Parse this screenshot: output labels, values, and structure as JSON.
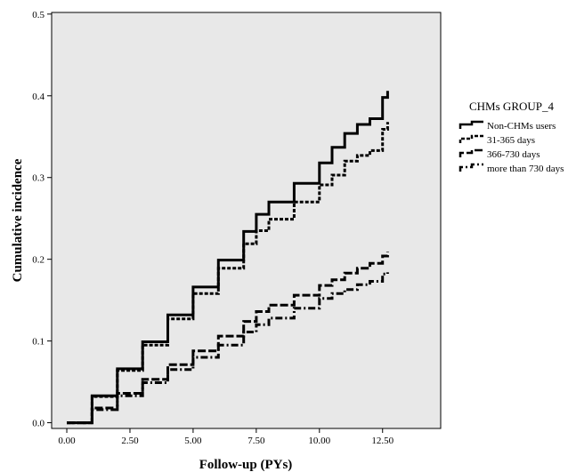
{
  "chart_data": {
    "type": "line",
    "title": "",
    "xlabel": "Follow-up (PYs)",
    "ylabel": "Cumulative incidence",
    "xlim": [
      -0.6,
      14.8
    ],
    "ylim": [
      -0.007,
      0.502
    ],
    "x_ticks": [
      0,
      2.5,
      5,
      7.5,
      10,
      12.5
    ],
    "x_tick_labels": [
      "0.00",
      "2.50",
      "5.00",
      "7.50",
      "10.00",
      "12.50"
    ],
    "y_ticks": [
      0,
      0.1,
      0.2,
      0.3,
      0.4,
      0.5
    ],
    "y_tick_labels": [
      "0.0",
      "0.1",
      "0.2",
      "0.3",
      "0.4",
      "0.5"
    ],
    "grid": false,
    "plot_background": "#e8e8e8",
    "legend": {
      "title": "CHMs GROUP_4",
      "placement": "right"
    },
    "series": [
      {
        "name": "Non-CHMs users",
        "style": "solid",
        "x": [
          0,
          1,
          2,
          3,
          4,
          5,
          6,
          7,
          7.5,
          8,
          9,
          10,
          10.5,
          11,
          11.5,
          12,
          12.5,
          12.7
        ],
        "y": [
          0,
          0.033,
          0.066,
          0.099,
          0.132,
          0.166,
          0.199,
          0.234,
          0.255,
          0.27,
          0.293,
          0.318,
          0.337,
          0.354,
          0.365,
          0.372,
          0.398,
          0.406
        ]
      },
      {
        "name": "31-365 days",
        "style": "dashed",
        "x": [
          0,
          1,
          2,
          3,
          4,
          5,
          6,
          7,
          7.5,
          8,
          9,
          10,
          10.5,
          11,
          11.5,
          12,
          12.5,
          12.7
        ],
        "y": [
          0,
          0.032,
          0.064,
          0.095,
          0.127,
          0.158,
          0.189,
          0.219,
          0.235,
          0.249,
          0.27,
          0.291,
          0.303,
          0.32,
          0.327,
          0.333,
          0.359,
          0.368
        ]
      },
      {
        "name": "366-730 days",
        "style": "long-dash",
        "x": [
          0,
          1,
          2,
          3,
          4,
          5,
          6,
          7,
          7.5,
          8,
          9,
          10,
          10.5,
          11,
          11.5,
          12,
          12.5,
          12.7
        ],
        "y": [
          0,
          0.018,
          0.036,
          0.053,
          0.071,
          0.088,
          0.106,
          0.124,
          0.136,
          0.144,
          0.156,
          0.168,
          0.175,
          0.183,
          0.189,
          0.195,
          0.204,
          0.209
        ]
      },
      {
        "name": "more than 730 days",
        "style": "dash-dot",
        "x": [
          0,
          1,
          2,
          3,
          4,
          5,
          6,
          7,
          7.5,
          8,
          9,
          10,
          10.5,
          11,
          11.5,
          12,
          12.5,
          12.7
        ],
        "y": [
          0,
          0.016,
          0.033,
          0.049,
          0.065,
          0.08,
          0.095,
          0.111,
          0.12,
          0.128,
          0.14,
          0.152,
          0.158,
          0.163,
          0.169,
          0.173,
          0.182,
          0.184
        ]
      }
    ]
  }
}
